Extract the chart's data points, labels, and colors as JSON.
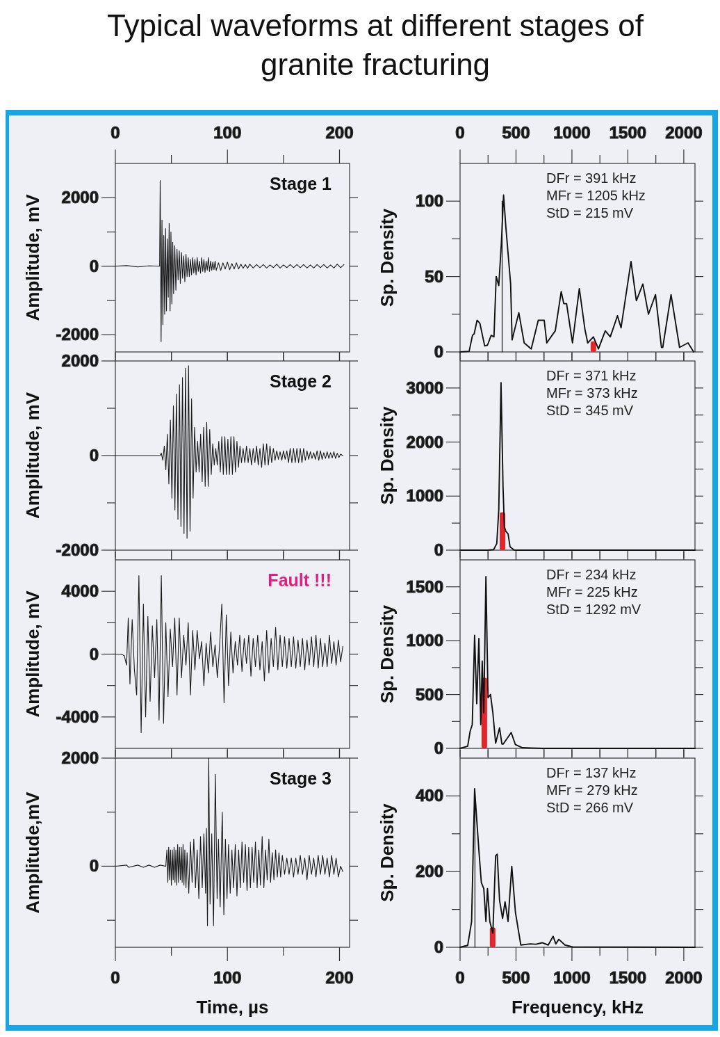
{
  "chart_data": [
    {
      "type": "line",
      "title": "Typical waveforms at different stages of granite fracturing",
      "ylabel": "Amplitude, mV",
      "annotations": [
        "Stage 1"
      ],
      "xlim": [
        0,
        209
      ],
      "xticks": [
        0,
        {
          "value": 50,
          "label": null
        },
        100,
        {
          "value": 150,
          "label": null
        },
        200
      ],
      "ylim": [
        -2500,
        3000
      ],
      "yticks": [
        -2000,
        {
          "value": -1000,
          "label": null
        },
        0,
        {
          "value": 1000,
          "label": null
        },
        2000
      ],
      "series": [
        {
          "color": "#1a1a1a",
          "x": [
            0,
            10,
            20,
            30,
            39.5,
            40,
            40.8,
            41.6,
            42.4,
            43.2,
            44,
            44.8,
            45.6,
            46.4,
            47.2,
            48,
            48.8,
            49.6,
            50.4,
            51.2,
            52,
            53,
            54,
            55,
            56,
            57,
            58,
            59,
            60,
            61,
            62,
            63,
            64,
            65,
            66,
            67,
            68,
            69,
            70,
            71,
            72,
            73,
            74,
            75,
            76,
            77,
            78,
            79,
            80,
            81,
            82,
            83,
            84,
            85,
            86,
            87,
            88,
            89,
            90,
            92,
            94,
            96,
            98,
            100,
            102,
            104,
            106,
            108,
            110,
            112,
            114,
            116,
            118,
            120,
            123,
            126,
            129,
            132,
            135,
            138,
            141,
            144,
            147,
            150,
            153,
            156,
            159,
            162,
            165,
            168,
            171,
            174,
            177,
            180,
            183,
            186,
            189,
            192,
            195,
            198,
            201,
            204
          ],
          "values": [
            0,
            20,
            -20,
            10,
            0,
            2500,
            -2200,
            1350,
            -1700,
            900,
            -1400,
            1100,
            -1300,
            800,
            -900,
            1250,
            -1300,
            1000,
            -1100,
            700,
            -800,
            600,
            -700,
            500,
            -400,
            450,
            -500,
            400,
            -350,
            300,
            -450,
            350,
            -300,
            250,
            -300,
            200,
            -250,
            250,
            -200,
            200,
            -250,
            250,
            -150,
            150,
            -200,
            250,
            -150,
            200,
            -180,
            150,
            -120,
            250,
            -150,
            150,
            -120,
            120,
            -100,
            150,
            -120,
            100,
            -120,
            100,
            -80,
            120,
            -100,
            80,
            -80,
            100,
            -80,
            60,
            -60,
            50,
            -60,
            60,
            -50,
            50,
            -40,
            50,
            -50,
            40,
            -40,
            60,
            -50,
            40,
            -40,
            50,
            -40,
            50,
            -40,
            50,
            -50,
            40,
            -50,
            50,
            -40,
            50,
            -50,
            40,
            -50,
            60,
            -40,
            50
          ]
        }
      ]
    },
    {
      "type": "line",
      "ylabel": "Sp. Density",
      "annotations": [
        "DFr = 391 kHz",
        "MFr = 1205 kHz",
        "StD = 215 mV"
      ],
      "xlim": [
        0,
        2100
      ],
      "xticks": [
        0,
        {
          "value": 250,
          "label": null
        },
        500,
        {
          "value": 750,
          "label": null
        },
        1000,
        {
          "value": 1250,
          "label": null
        },
        1500,
        {
          "value": 1750,
          "label": null
        },
        2000
      ],
      "ylim": [
        0,
        125
      ],
      "yticks": [
        0,
        {
          "value": 25,
          "label": null
        },
        50,
        {
          "value": 75,
          "label": null
        },
        100
      ],
      "series": [
        {
          "color": "#111111",
          "x": [
            0,
            81,
            111,
            126,
            152,
            177,
            220,
            245,
            278,
            303,
            323,
            346,
            369,
            389,
            409,
            452,
            465,
            525,
            573,
            636,
            699,
            752,
            775,
            851,
            904,
            927,
            952,
            1005,
            1066,
            1116,
            1141,
            1192,
            1237,
            1298,
            1343,
            1407,
            1439,
            1528,
            1576,
            1634,
            1684,
            1747,
            1800,
            1812,
            1886,
            1962,
            2038,
            2088
          ],
          "values": [
            0,
            0.4,
            11,
            12,
            21,
            19,
            4,
            4.5,
            11,
            10,
            50,
            44,
            72,
            104,
            83,
            45,
            8,
            26,
            6,
            2,
            21,
            21,
            6,
            14,
            40,
            32,
            32,
            6,
            42,
            15,
            6,
            10,
            2,
            14,
            10,
            24,
            16,
            60,
            34,
            45,
            25,
            38,
            3,
            3,
            38,
            3,
            6,
            0
          ]
        },
        {
          "type": "bar",
          "color": "#e3262b",
          "x": [
            1192
          ],
          "values": [
            7
          ]
        },
        {
          "type": "line",
          "color": "#111111",
          "x": [
            376,
            376
          ],
          "values": [
            0,
            100
          ]
        }
      ]
    },
    {
      "type": "line",
      "ylabel": "Amplitude, mV",
      "annotations": [
        "Stage 2"
      ],
      "tick_labels": "y",
      "xlim": [
        0,
        209
      ],
      "xticks": [
        {
          "value": 0,
          "label": null
        },
        {
          "value": 50,
          "label": null
        },
        {
          "value": 100,
          "label": null
        },
        {
          "value": 150,
          "label": null
        },
        {
          "value": 200,
          "label": null
        }
      ],
      "ylim": [
        -2000,
        2000
      ],
      "yticks": [
        -2000,
        {
          "value": -1000,
          "label": null
        },
        0,
        {
          "value": 1000,
          "label": null
        },
        2000
      ],
      "series": [
        {
          "color": "#1a1a1a",
          "x": [
            0,
            20,
            40,
            41,
            42.35,
            43.7,
            45.05,
            46.4,
            47.75,
            49.1,
            50.45,
            51.8,
            53.15,
            54.5,
            55.85,
            57.2,
            58.55,
            59.9,
            61.25,
            62.6,
            63.95,
            65.3,
            66.65,
            68,
            69.35,
            70.7,
            72.05,
            73.4,
            74.75,
            76.1,
            77.45,
            78.8,
            80.15,
            81.5,
            82.85,
            84.2,
            85.55,
            86.9,
            88.25,
            89.6,
            90.95,
            92.3,
            93.65,
            95,
            96.35,
            97.7,
            99.05,
            100.4,
            101.75,
            103.1,
            104.45,
            105.8,
            107.15,
            108.5,
            109.85,
            111.2,
            112.55,
            114,
            115.5,
            117,
            118.5,
            120,
            121.5,
            123,
            124.5,
            126,
            127.5,
            129,
            130.5,
            132,
            133.5,
            135,
            136.5,
            138,
            139.5,
            141,
            142.5,
            144,
            145.5,
            147,
            148.5,
            150,
            151.5,
            153,
            154.5,
            156,
            157.5,
            159,
            160.5,
            162,
            163.5,
            165,
            166.5,
            168,
            169.5,
            171,
            172.5,
            174,
            175.5,
            177,
            178.5,
            180,
            181.5,
            183,
            184.5,
            186,
            187.5,
            189,
            190.5,
            192,
            193.5,
            195,
            196.5,
            198,
            199.5,
            201,
            203
          ],
          "values": [
            0,
            0,
            0,
            50,
            -100,
            200,
            -300,
            450,
            -600,
            750,
            -900,
            1050,
            -1150,
            1300,
            -1350,
            1500,
            -1500,
            1650,
            -1650,
            1850,
            -1750,
            1900,
            -1600,
            1200,
            -900,
            600,
            -350,
            300,
            -350,
            450,
            -550,
            600,
            -650,
            700,
            -650,
            550,
            -400,
            250,
            -200,
            150,
            -200,
            300,
            -350,
            400,
            -400,
            400,
            -400,
            350,
            -400,
            400,
            -400,
            400,
            -350,
            300,
            -250,
            200,
            -150,
            150,
            -150,
            200,
            -150,
            150,
            -200,
            150,
            -150,
            200,
            -200,
            150,
            -250,
            250,
            -200,
            250,
            -200,
            200,
            -150,
            150,
            -100,
            100,
            -80,
            80,
            -100,
            100,
            -80,
            100,
            -150,
            150,
            -150,
            150,
            -150,
            150,
            -150,
            150,
            -150,
            150,
            -100,
            100,
            -80,
            80,
            -60,
            60,
            -80,
            100,
            -100,
            100,
            -80,
            60,
            -60,
            80,
            -60,
            60,
            -50,
            80,
            -60,
            50,
            -40,
            30,
            0
          ]
        }
      ]
    },
    {
      "type": "line",
      "ylabel": "Sp. Density",
      "tick_labels": "y",
      "annotations": [
        "DFr = 371 kHz",
        "MFr = 373 kHz",
        "StD = 345 mV"
      ],
      "xlim": [
        0,
        2100
      ],
      "xticks": [
        {
          "value": 0,
          "label": null
        },
        {
          "value": 250,
          "label": null
        },
        {
          "value": 500,
          "label": null
        },
        {
          "value": 750,
          "label": null
        },
        {
          "value": 1000,
          "label": null
        },
        {
          "value": 1250,
          "label": null
        },
        {
          "value": 1500,
          "label": null
        },
        {
          "value": 1750,
          "label": null
        },
        {
          "value": 2000,
          "label": null
        }
      ],
      "ylim": [
        0,
        3500
      ],
      "yticks": [
        0,
        {
          "value": 500,
          "label": null
        },
        1000,
        {
          "value": 1500,
          "label": null
        },
        2000,
        {
          "value": 2500,
          "label": null
        },
        3000
      ],
      "series": [
        {
          "color": "#111111",
          "x": [
            0,
            250,
            300,
            328,
            346,
            366,
            384,
            396,
            409,
            429,
            447,
            485,
            2100
          ],
          "values": [
            0,
            0,
            10,
            120,
            750,
            3100,
            1170,
            430,
            350,
            300,
            60,
            0,
            0
          ]
        },
        {
          "type": "bar",
          "color": "#e3262b",
          "x": [
            379
          ],
          "values": [
            700
          ]
        }
      ]
    },
    {
      "type": "line",
      "ylabel": "Amplitude, mV",
      "annotations": [
        "Fault !!!"
      ],
      "tick_labels": "y",
      "xlim": [
        0,
        209
      ],
      "xticks": [
        {
          "value": 0,
          "label": null
        },
        {
          "value": 50,
          "label": null
        },
        {
          "value": 100,
          "label": null
        },
        {
          "value": 150,
          "label": null
        },
        {
          "value": 200,
          "label": null
        }
      ],
      "ylim": [
        -6000,
        6000
      ],
      "yticks": [
        -4000,
        {
          "value": -2000,
          "label": null
        },
        0,
        {
          "value": 2000,
          "label": null
        },
        4000
      ],
      "series": [
        {
          "color": "#1a1a1a",
          "x": [
            0,
            5,
            8,
            10,
            11.5,
            13,
            15,
            17,
            19,
            21,
            23,
            25,
            27,
            29,
            31,
            33,
            35,
            37,
            39,
            41,
            43,
            45,
            47,
            49,
            51,
            53,
            55,
            57,
            59,
            61,
            63,
            65,
            67,
            69,
            71,
            73,
            75,
            77,
            79,
            81,
            83,
            85,
            87,
            89,
            91,
            93,
            95,
            97,
            99,
            101,
            103,
            105,
            107,
            109,
            111,
            113,
            115,
            117,
            119,
            121,
            123,
            125,
            127,
            129,
            131,
            133,
            135,
            137,
            139,
            141,
            143,
            145,
            147,
            149,
            151,
            153,
            155,
            157,
            159,
            161,
            163,
            165,
            167,
            169,
            171,
            173,
            175,
            177,
            179,
            181,
            183,
            185,
            187,
            189,
            191,
            193,
            195,
            197,
            199,
            201,
            203
          ],
          "values": [
            0,
            0,
            -100,
            -700,
            2300,
            -1900,
            2200,
            -1000,
            -2600,
            5000,
            -5000,
            3200,
            -4000,
            2400,
            -3000,
            1800,
            -1500,
            2200,
            -4200,
            5000,
            -4400,
            2000,
            -2700,
            1600,
            -800,
            2300,
            -2600,
            2300,
            -1500,
            1200,
            -700,
            2000,
            -2600,
            1500,
            -1000,
            1500,
            -300,
            800,
            -2000,
            700,
            -1200,
            1400,
            -800,
            600,
            -1500,
            500,
            3200,
            -3100,
            2500,
            -2000,
            1400,
            -1200,
            800,
            -700,
            1200,
            -1100,
            1000,
            -600,
            1200,
            -1400,
            1000,
            -800,
            1200,
            -1000,
            800,
            -1700,
            1500,
            -1200,
            1000,
            -800,
            1700,
            -1000,
            1200,
            -800,
            1100,
            -900,
            1000,
            -800,
            1100,
            -900,
            900,
            -800,
            1000,
            -1000,
            900,
            -700,
            1100,
            -800,
            1200,
            -900,
            1000,
            -800,
            700,
            -800,
            1200,
            -600,
            800,
            -700,
            900,
            -500,
            500
          ]
        }
      ]
    },
    {
      "type": "line",
      "ylabel": "Sp. Density",
      "tick_labels": "y",
      "annotations": [
        "DFr = 234 kHz",
        "MFr = 225 kHz",
        "StD = 1292 mV"
      ],
      "xlim": [
        0,
        2100
      ],
      "xticks": [
        {
          "value": 0,
          "label": null
        },
        {
          "value": 250,
          "label": null
        },
        {
          "value": 500,
          "label": null
        },
        {
          "value": 750,
          "label": null
        },
        {
          "value": 1000,
          "label": null
        },
        {
          "value": 1250,
          "label": null
        },
        {
          "value": 1500,
          "label": null
        },
        {
          "value": 1750,
          "label": null
        },
        {
          "value": 2000,
          "label": null
        }
      ],
      "ylim": [
        0,
        1750
      ],
      "yticks": [
        0,
        {
          "value": 250,
          "label": null
        },
        500,
        {
          "value": 750,
          "label": null
        },
        1000,
        {
          "value": 1250,
          "label": null
        },
        1500
      ],
      "series": [
        {
          "color": "#111111",
          "x": [
            0,
            68,
            90,
            109,
            130,
            149,
            168,
            185,
            198,
            212,
            231,
            250,
            272,
            293,
            318,
            353,
            374,
            386,
            457,
            495,
            557,
            734,
            2100
          ],
          "values": [
            0,
            20,
            160,
            220,
            1050,
            415,
            1020,
            220,
            810,
            330,
            1595,
            470,
            500,
            330,
            48,
            190,
            40,
            40,
            147,
            34,
            6,
            0,
            0
          ]
        },
        {
          "type": "bar",
          "color": "#e3262b",
          "x": [
            217
          ],
          "values": [
            655
          ]
        }
      ]
    },
    {
      "type": "line",
      "ylabel": "Amplitude,mV",
      "xlabel": "Time, µs",
      "annotations": [
        "Stage 3"
      ],
      "xlim": [
        0,
        209
      ],
      "xticks": [
        0,
        {
          "value": 50,
          "label": null
        },
        100,
        {
          "value": 150,
          "label": null
        },
        200
      ],
      "ylim": [
        -1500,
        2000
      ],
      "yticks": [
        {
          "value": -1000,
          "label": null
        },
        0,
        {
          "value": 1000,
          "label": null
        },
        2000
      ],
      "series": [
        {
          "color": "#1a1a1a",
          "x": [
            0,
            10,
            12,
            20,
            25,
            30,
            35,
            40,
            45,
            46,
            46.8,
            47.6,
            48.4,
            49.2,
            50,
            50.8,
            51.6,
            52.4,
            53.2,
            54,
            54.8,
            55.6,
            56.4,
            57.2,
            58,
            58.8,
            59.6,
            60.4,
            61.2,
            62,
            63,
            64,
            65.5,
            67,
            68.5,
            70,
            71.5,
            73,
            74.5,
            76,
            77.5,
            79,
            80.5,
            81.3,
            82.2,
            83.3,
            84.5,
            86,
            87.6,
            89.2,
            90.8,
            92,
            93.5,
            95.4,
            96.8,
            98.2,
            99.6,
            101,
            102.5,
            104,
            105.5,
            107,
            108.5,
            110,
            111.5,
            113,
            114.5,
            116,
            117.5,
            119,
            120.5,
            122,
            123.5,
            125,
            126.5,
            128,
            129.5,
            131,
            132.5,
            134,
            135.5,
            137,
            138.5,
            140,
            141.5,
            143,
            144.5,
            146,
            147.5,
            149,
            151,
            153,
            155,
            157,
            159,
            161,
            163,
            165,
            167,
            169,
            171,
            173,
            175,
            177,
            179,
            181,
            183,
            185,
            187,
            189,
            191,
            193,
            195,
            197,
            199,
            201,
            203
          ],
          "values": [
            0,
            20,
            -20,
            20,
            -20,
            20,
            -20,
            20,
            0,
            300,
            -300,
            350,
            -250,
            300,
            -350,
            300,
            -250,
            350,
            -300,
            300,
            -350,
            400,
            -300,
            350,
            -250,
            350,
            -300,
            400,
            -350,
            300,
            -400,
            250,
            -500,
            450,
            -300,
            500,
            -400,
            300,
            -600,
            550,
            -400,
            600,
            -500,
            700,
            -1100,
            2000,
            -700,
            600,
            -1100,
            1700,
            -600,
            500,
            -750,
            1000,
            -900,
            500,
            -600,
            400,
            -500,
            300,
            -400,
            400,
            -550,
            300,
            -400,
            450,
            -300,
            400,
            -450,
            350,
            -400,
            350,
            -300,
            450,
            -400,
            300,
            -350,
            550,
            -400,
            300,
            -250,
            500,
            -300,
            250,
            -250,
            300,
            -200,
            250,
            -200,
            200,
            -150,
            150,
            -150,
            150,
            -200,
            150,
            -150,
            200,
            -150,
            150,
            -250,
            200,
            -150,
            150,
            -200,
            200,
            -150,
            200,
            -150,
            150,
            -200,
            200,
            -150,
            150,
            -200,
            0,
            -100
          ]
        }
      ]
    },
    {
      "type": "line",
      "ylabel": "Sp. Density",
      "xlabel": "Frequency, kHz",
      "annotations": [
        "DFr = 137 kHz",
        "MFr = 279 kHz",
        "StD = 266 mV"
      ],
      "xlim": [
        0,
        2100
      ],
      "xticks": [
        0,
        {
          "value": 250,
          "label": null
        },
        500,
        {
          "value": 750,
          "label": null
        },
        1000,
        {
          "value": 1250,
          "label": null
        },
        1500,
        {
          "value": 1750,
          "label": null
        },
        2000
      ],
      "ylim": [
        0,
        500
      ],
      "yticks": [
        0,
        {
          "value": 100,
          "label": null
        },
        200,
        {
          "value": 300,
          "label": null
        },
        400
      ],
      "series": [
        {
          "color": "#111111",
          "x": [
            0,
            68,
            103,
            130,
            168,
            190,
            212,
            231,
            245,
            266,
            293,
            318,
            332,
            353,
            380,
            402,
            429,
            462,
            495,
            543,
            625,
            679,
            734,
            788,
            832,
            856,
            883,
            938,
            1005,
            2100
          ],
          "values": [
            0,
            5,
            68,
            419,
            257,
            171,
            155,
            68,
            155,
            68,
            37,
            242,
            246,
            124,
            76,
            120,
            68,
            214,
            92,
            6,
            9,
            8,
            12,
            6,
            29,
            9,
            21,
            6,
            1,
            0
          ]
        },
        {
          "type": "bar",
          "color": "#e3262b",
          "x": [
            291
          ],
          "values": [
            53
          ]
        },
        {
          "type": "line",
          "color": "#111111",
          "x": [
            133,
            133
          ],
          "values": [
            0,
            400
          ]
        }
      ]
    }
  ]
}
